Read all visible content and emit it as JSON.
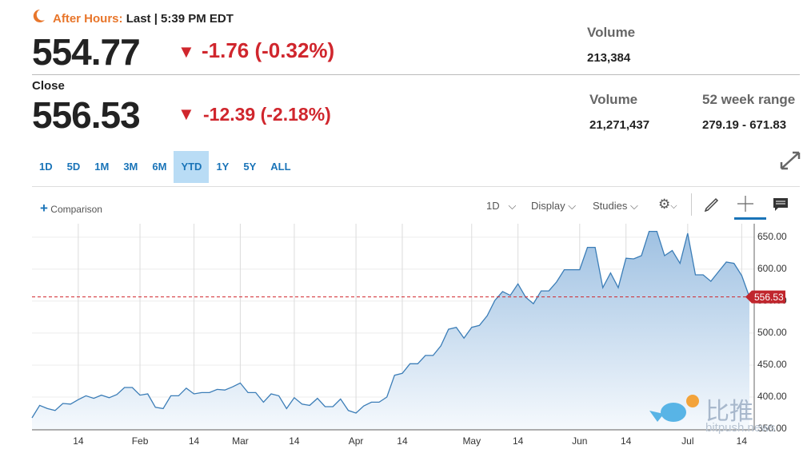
{
  "header": {
    "after_hours": "After Hours:",
    "last": "Last | 5:39 PM EDT",
    "price": "554.77",
    "change": "-1.76 (-0.32%)",
    "volume_label": "Volume",
    "volume": "213,384",
    "close_label": "Close",
    "close": "556.53",
    "close_change": "-12.39 (-2.18%)",
    "close_volume_label": "Volume",
    "close_volume": "21,271,437",
    "range_label": "52 week range",
    "range": "279.19 - 671.83"
  },
  "ranges": [
    "1D",
    "5D",
    "1M",
    "3M",
    "6M",
    "YTD",
    "1Y",
    "5Y",
    "ALL"
  ],
  "selected_range": "YTD",
  "toolbar": {
    "comparison": "Comparison",
    "interval": "1D",
    "display": "Display",
    "studies": "Studies"
  },
  "watermark": [
    "比推",
    "bitpush.news"
  ],
  "chart_data": {
    "type": "area",
    "color": "#3b7db7",
    "categories": [
      null,
      null,
      null,
      null,
      null,
      null,
      "14",
      null,
      null,
      null,
      null,
      null,
      null,
      null,
      "Feb",
      null,
      null,
      null,
      null,
      null,
      null,
      "14",
      null,
      null,
      null,
      null,
      null,
      "Mar",
      null,
      null,
      null,
      null,
      null,
      null,
      "14",
      null,
      null,
      null,
      null,
      null,
      null,
      null,
      "Apr",
      null,
      null,
      null,
      null,
      null,
      "14",
      null,
      null,
      null,
      null,
      null,
      null,
      null,
      null,
      "May",
      null,
      null,
      null,
      null,
      null,
      "14",
      null,
      null,
      null,
      null,
      null,
      null,
      null,
      "Jun",
      null,
      null,
      null,
      null,
      null,
      "14",
      null,
      null,
      null,
      null,
      null,
      null,
      null,
      "Jul",
      null,
      null,
      null,
      null,
      null,
      null,
      "14",
      null
    ],
    "values": [
      367.5,
      387,
      382,
      379,
      390,
      389,
      396,
      402,
      398,
      403,
      399,
      404,
      415,
      415,
      403,
      405,
      384,
      382,
      402,
      402,
      414,
      405,
      407,
      407,
      412,
      411,
      416,
      422,
      407,
      407,
      392,
      405,
      402,
      382,
      399,
      389,
      387,
      398,
      385,
      385,
      397,
      379,
      375,
      386,
      392,
      392,
      400,
      434,
      437,
      452,
      452,
      465,
      465,
      480,
      506,
      509,
      492,
      509,
      512,
      527,
      551,
      565,
      559,
      577,
      556,
      546,
      566,
      566,
      580,
      599,
      599,
      599,
      634,
      634,
      571,
      594,
      571,
      617,
      616,
      621,
      659,
      659,
      621,
      629,
      609,
      656,
      591,
      591,
      581,
      596,
      611,
      609,
      590,
      556.53
    ],
    "ylim": [
      350,
      671
    ],
    "yticks": [
      {
        "value": 350,
        "label": "350.00"
      },
      {
        "value": 400,
        "label": "400.00"
      },
      {
        "value": 450,
        "label": "450.00"
      },
      {
        "value": 500,
        "label": "500.00"
      },
      {
        "value": 550,
        "label": "550.00"
      },
      {
        "value": 600,
        "label": "600.00"
      },
      {
        "value": 650,
        "label": "650.00"
      }
    ],
    "grid": true,
    "reference_line": {
      "value": 556.53,
      "label": "556.53",
      "color": "#d0262d"
    }
  }
}
